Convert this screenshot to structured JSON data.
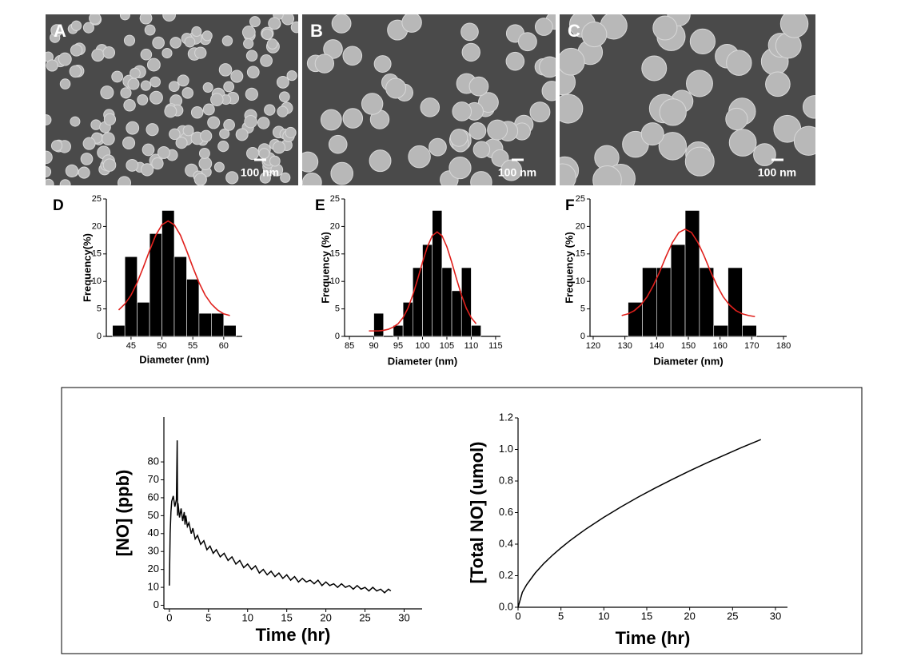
{
  "image_panels": [
    {
      "label": "A",
      "scale_bar": "100 nm"
    },
    {
      "label": "B",
      "scale_bar": "100 nm"
    },
    {
      "label": "C",
      "scale_bar": "100 nm"
    }
  ],
  "chart_data": [
    {
      "type": "histogram",
      "title": "D",
      "xlabel": "Diameter (nm)",
      "ylabel": "Frequency(%)",
      "color": "#000000",
      "bins": [
        42,
        44,
        46,
        48,
        50,
        52,
        54,
        56,
        58,
        60,
        62
      ],
      "values": [
        2,
        14.5,
        6.2,
        18.7,
        22.9,
        14.5,
        10.4,
        4.2,
        4.2,
        2
      ],
      "xlim": [
        41,
        63
      ],
      "ylim": [
        0,
        25
      ],
      "xticks": [
        45,
        50,
        55,
        60
      ],
      "yticks": [
        0,
        5,
        10,
        15,
        20,
        25
      ],
      "fit": {
        "color": "#e0201c",
        "x": [
          43,
          44,
          45,
          46,
          47,
          48,
          49,
          50,
          51,
          52,
          53,
          54,
          55,
          56,
          57,
          58,
          59,
          60,
          61
        ],
        "values": [
          4.8,
          5.9,
          7.5,
          9.8,
          12.6,
          15.6,
          18.4,
          20.3,
          21,
          20.3,
          18.4,
          15.6,
          12.6,
          9.8,
          7.5,
          5.9,
          4.8,
          4.1,
          3.8
        ]
      }
    },
    {
      "type": "histogram",
      "title": "E",
      "xlabel": "Diameter (nm)",
      "ylabel": "Frequency (%)",
      "color": "#000000",
      "bins": [
        90,
        92,
        94,
        96,
        98,
        100,
        102,
        104,
        106,
        108,
        110,
        112
      ],
      "values": [
        4.2,
        0,
        2,
        6.2,
        12.5,
        16.7,
        22.9,
        12.5,
        8.3,
        12.5,
        2
      ],
      "xlim": [
        84,
        116
      ],
      "ylim": [
        0,
        25
      ],
      "xticks": [
        85,
        90,
        95,
        100,
        105,
        110,
        115
      ],
      "yticks": [
        0,
        5,
        10,
        15,
        20,
        25
      ],
      "fit": {
        "color": "#e0201c",
        "x": [
          89,
          90,
          91,
          92,
          93,
          94,
          95,
          96,
          97,
          98,
          99,
          100,
          101,
          102,
          103,
          104,
          105,
          106,
          107,
          108,
          109,
          110,
          111
        ],
        "values": [
          1,
          1,
          1,
          1.1,
          1.3,
          1.7,
          2.3,
          3.4,
          5.1,
          7.5,
          10.4,
          13.5,
          16.3,
          18.3,
          19,
          18.3,
          16.3,
          13.5,
          10.4,
          7.5,
          5.1,
          3.4,
          2.3
        ]
      }
    },
    {
      "type": "histogram",
      "title": "F",
      "xlabel": "Diameter (nm)",
      "ylabel": "Frequency (%)",
      "color": "#000000",
      "bins": [
        131,
        135.5,
        140,
        144.5,
        149,
        153.5,
        158,
        162.5,
        167,
        171.5
      ],
      "values": [
        6.2,
        12.5,
        12.5,
        16.7,
        22.9,
        12.5,
        2,
        12.5,
        2
      ],
      "xlim": [
        119,
        181
      ],
      "ylim": [
        0,
        25
      ],
      "xticks": [
        120,
        130,
        140,
        150,
        160,
        170,
        180
      ],
      "yticks": [
        0,
        5,
        10,
        15,
        20,
        25
      ],
      "fit": {
        "color": "#e0201c",
        "x": [
          129,
          131,
          133,
          135,
          137,
          139,
          141,
          143,
          145,
          147,
          149,
          151,
          153,
          155,
          157,
          159,
          161,
          163,
          165,
          167,
          169,
          171
        ],
        "values": [
          3.8,
          4.1,
          4.7,
          5.7,
          7.2,
          9.3,
          11.8,
          14.6,
          17.1,
          18.9,
          19.5,
          18.9,
          17.1,
          14.6,
          11.8,
          9.3,
          7.2,
          5.7,
          4.7,
          4.1,
          3.8,
          3.6
        ]
      }
    },
    {
      "type": "line",
      "xlabel": "Time (hr)",
      "ylabel": "[NO] (ppb)",
      "color": "#000000",
      "x": [
        0,
        0.1,
        0.2,
        0.3,
        0.5,
        0.7,
        0.9,
        1.0,
        1.05,
        1.1,
        1.3,
        1.5,
        1.7,
        1.9,
        2.0,
        2.1,
        2.3,
        2.5,
        2.8,
        3,
        3.3,
        3.6,
        4,
        4.4,
        4.8,
        5.2,
        5.6,
        6,
        6.5,
        7,
        7.5,
        8,
        8.5,
        9,
        9.5,
        10,
        10.5,
        11,
        11.5,
        12,
        12.5,
        13,
        13.5,
        14,
        14.5,
        15,
        15.5,
        16,
        16.5,
        17,
        17.5,
        18,
        18.5,
        19,
        19.5,
        20,
        20.5,
        21,
        21.5,
        22,
        22.5,
        23,
        23.5,
        24,
        24.5,
        25,
        25.5,
        26,
        26.5,
        27,
        27.5,
        28,
        28.3
      ],
      "values": [
        11,
        40,
        52,
        58,
        61,
        55,
        59,
        92,
        50,
        57,
        49,
        54,
        47,
        52,
        45,
        50,
        44,
        46,
        40,
        43,
        37,
        39,
        34,
        36,
        31,
        33,
        29,
        31,
        27,
        29,
        25,
        27,
        23,
        25,
        21,
        23,
        20,
        22,
        18,
        20,
        17,
        19,
        16,
        18,
        15,
        17,
        14,
        16,
        13,
        15,
        13,
        14,
        12,
        14,
        11,
        13,
        11,
        12,
        10,
        12,
        10,
        11,
        9,
        11,
        9,
        10,
        8,
        10,
        8,
        9,
        7,
        9,
        8
      ],
      "xlim": [
        -0.7,
        32.3
      ],
      "ylim": [
        -2,
        105
      ],
      "xticks": [
        0,
        5,
        10,
        15,
        20,
        25,
        30
      ],
      "yticks": [
        0,
        10,
        20,
        30,
        40,
        50,
        60,
        70,
        80
      ]
    },
    {
      "type": "line",
      "xlabel": "Time (hr)",
      "ylabel": "[Total NO] (umol)",
      "color": "#000000",
      "x": [
        0,
        0.5,
        1,
        2,
        3,
        4,
        5,
        6,
        7,
        8,
        10,
        12,
        14,
        16,
        18,
        20,
        22,
        24,
        26,
        28,
        28.3
      ],
      "values": [
        0,
        0.095,
        0.143,
        0.217,
        0.277,
        0.329,
        0.376,
        0.42,
        0.46,
        0.499,
        0.57,
        0.636,
        0.698,
        0.756,
        0.811,
        0.864,
        0.915,
        0.963,
        1.011,
        1.056,
        1.063
      ],
      "xlim": [
        0,
        31.4
      ],
      "ylim": [
        0,
        1.2
      ],
      "xticks": [
        0,
        5,
        10,
        15,
        20,
        25,
        30
      ],
      "yticks": [
        {
          "value": 0,
          "label": "0.0"
        },
        0.2,
        0.4,
        0.6,
        0.8,
        {
          "value": 1,
          "label": "1.0"
        },
        1.2
      ]
    }
  ]
}
